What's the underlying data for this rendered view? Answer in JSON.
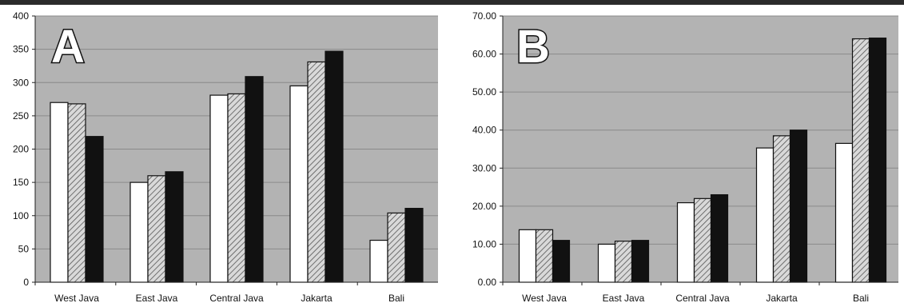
{
  "chart_data": [
    {
      "type": "bar",
      "panel_label": "A",
      "categories": [
        "West Java",
        "East Java",
        "Central Java",
        "Jakarta",
        "Bali"
      ],
      "series": [
        {
          "values": [
            270,
            150,
            281,
            295,
            63
          ],
          "fill": "white"
        },
        {
          "values": [
            268,
            160,
            283,
            331,
            104
          ],
          "fill": "hatched"
        },
        {
          "values": [
            219,
            166,
            309,
            347,
            111
          ],
          "fill": "black"
        }
      ],
      "ylim": [
        0,
        400
      ],
      "yticks": [
        "0",
        "50",
        "100",
        "150",
        "200",
        "250",
        "300",
        "350",
        "400"
      ],
      "grid": true,
      "xlabel": "",
      "ylabel": ""
    },
    {
      "type": "bar",
      "panel_label": "B",
      "categories": [
        "West Java",
        "East Java",
        "Central Java",
        "Jakarta",
        "Bali"
      ],
      "series": [
        {
          "values": [
            13.8,
            10.0,
            20.9,
            35.3,
            36.5
          ],
          "fill": "white"
        },
        {
          "values": [
            13.8,
            10.8,
            22.0,
            38.5,
            64.0
          ],
          "fill": "hatched"
        },
        {
          "values": [
            11.0,
            11.0,
            23.0,
            40.0,
            64.2
          ],
          "fill": "black"
        }
      ],
      "ylim": [
        0,
        70
      ],
      "yticks": [
        "0.00",
        "10.00",
        "20.00",
        "30.00",
        "40.00",
        "50.00",
        "60.00",
        "70.00"
      ],
      "grid": true,
      "xlabel": "",
      "ylabel": ""
    }
  ],
  "colors": {
    "plot_background": "#b3b3b3",
    "bar_white": "#ffffff",
    "bar_black": "#111111",
    "hatch_background": "#d9d9d9",
    "hatch_line": "#555555",
    "gridline": "#8a8a8a",
    "top_rule": "#2b2b2b"
  }
}
